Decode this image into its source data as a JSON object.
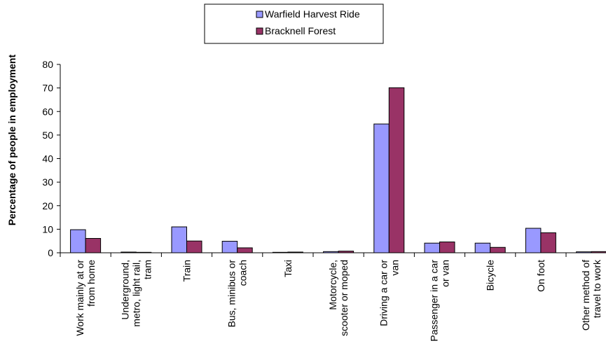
{
  "chart_data": {
    "type": "bar",
    "title": "",
    "xlabel": "",
    "ylabel": "Percentage of people in employment",
    "ylim": [
      0,
      80
    ],
    "yticks": [
      0,
      10,
      20,
      30,
      40,
      50,
      60,
      70,
      80
    ],
    "grid": false,
    "legend_position": "top-center",
    "categories": [
      [
        "Work mainly at or",
        "from home"
      ],
      [
        "Underground,",
        "metro, light rail,",
        "tram"
      ],
      [
        "Train"
      ],
      [
        "Bus, minibus or",
        "coach"
      ],
      [
        "Taxi"
      ],
      [
        "Motorcycle,",
        "scooter or moped"
      ],
      [
        "Driving a car or",
        "van"
      ],
      [
        "Passenger in a car",
        "or van"
      ],
      [
        "Bicycle"
      ],
      [
        "On foot"
      ],
      [
        "Other method of",
        "travel to work"
      ]
    ],
    "series": [
      {
        "name": "Warfield Harvest Ride",
        "color": "#9999ff",
        "values": [
          9.8,
          0.3,
          11.0,
          4.9,
          0.2,
          0.5,
          54.7,
          4.1,
          4.1,
          10.4,
          0.4
        ]
      },
      {
        "name": "Bracknell Forest",
        "color": "#993366",
        "values": [
          6.1,
          0.2,
          5.0,
          2.1,
          0.3,
          0.7,
          70.1,
          4.6,
          2.3,
          8.5,
          0.5
        ]
      }
    ]
  }
}
